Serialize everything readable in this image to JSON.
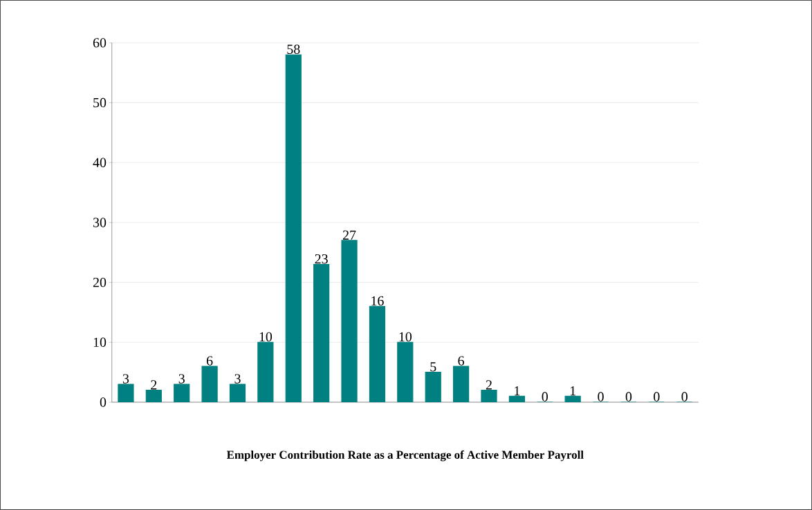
{
  "chart_data": {
    "type": "bar",
    "xlabel": "Employer Contribution Rate as a Percentage of Active Member Payroll",
    "categories": [
      null,
      null,
      null,
      null,
      null,
      null,
      null,
      null,
      null,
      null,
      null,
      null,
      null,
      null,
      null,
      null,
      null,
      null,
      null,
      null,
      null
    ],
    "values": [
      3,
      2,
      3,
      6,
      3,
      10,
      58,
      23,
      27,
      16,
      10,
      5,
      6,
      2,
      1,
      0,
      1,
      0,
      0,
      0,
      0
    ],
    "color": "#008080",
    "ylim": [
      0,
      60
    ],
    "yticks": [
      0,
      10,
      20,
      30,
      40,
      50,
      60
    ],
    "grid": "y",
    "data_labels": true
  }
}
